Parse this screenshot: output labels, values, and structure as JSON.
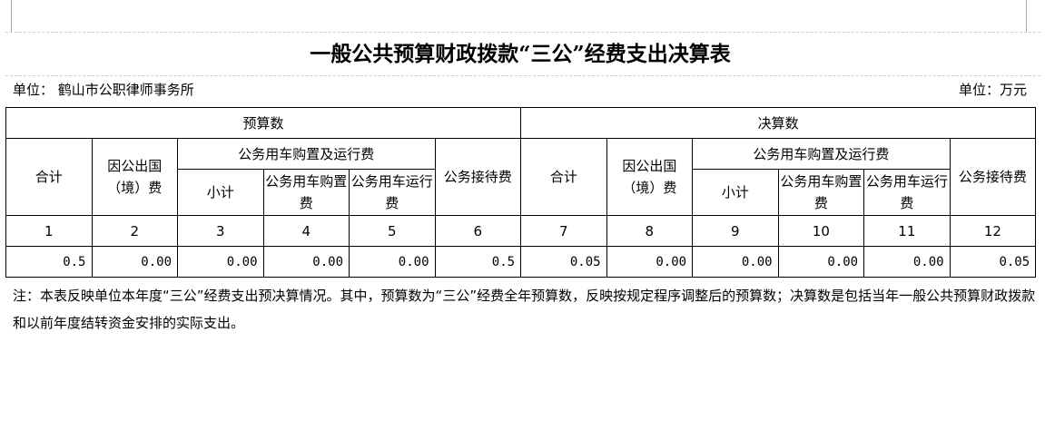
{
  "title": "一般公共预算财政拨款“三公”经费支出决算表",
  "unit_left": "单位：  鹤山市公职律师事务所",
  "unit_right": "单位：万元",
  "header": {
    "budget": "预算数",
    "final": "决算数",
    "total": "合计",
    "abroad": "因公出国（境）费",
    "vehicle": "公务用车购置及运行费",
    "subtotal": "小计",
    "purchase": "公务用车购置费",
    "operation": "公务用车运行费",
    "reception": "公务接待费"
  },
  "col_numbers": [
    "1",
    "2",
    "3",
    "4",
    "5",
    "6",
    "7",
    "8",
    "9",
    "10",
    "11",
    "12"
  ],
  "values": [
    "0.5",
    "0.00",
    "0.00",
    "0.00",
    "0.00",
    "0.5",
    "0.05",
    "0.00",
    "0.00",
    "0.00",
    "0.00",
    "0.05"
  ],
  "note": "注：本表反映单位本年度“三公”经费支出预决算情况。其中，预算数为“三公”经费全年预算数，反映按规定程序调整后的预算数；决算数是包括当年一般公共预算财政拨款和以前年度结转资金安排的实际支出。"
}
